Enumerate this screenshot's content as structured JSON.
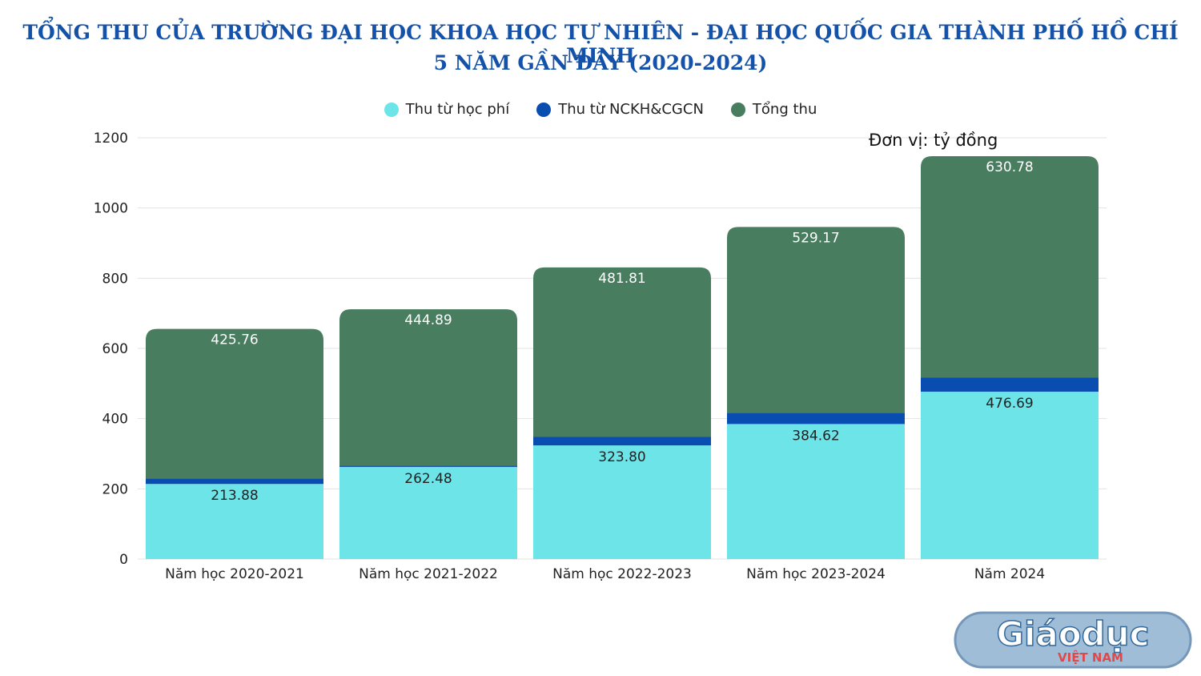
{
  "chart_data": {
    "type": "bar",
    "stacked": true,
    "title": "TỔNG THU CỦA TRƯỜNG ĐẠI HỌC KHOA HỌC TỰ NHIÊN - ĐẠI HỌC QUỐC GIA THÀNH PHỐ HỒ CHÍ MINH",
    "subtitle": "5 NĂM GẦN ĐÂY (2020-2024)",
    "unit_note": "Đơn vị: tỷ đồng",
    "categories": [
      "Năm học 2020-2021",
      "Năm học 2021-2022",
      "Năm học 2022-2023",
      "Năm học 2023-2024",
      "Năm 2024"
    ],
    "series": [
      {
        "name": "Thu từ học phí",
        "color": "#6de4e8",
        "label_color": "#222222",
        "values": [
          213.88,
          262.48,
          323.8,
          384.62,
          476.69
        ]
      },
      {
        "name": "Thu từ NCKH&CGCN",
        "color": "#0a4db0",
        "values": [
          16,
          4,
          25,
          32,
          40
        ]
      },
      {
        "name": "Tổng thu",
        "color": "#487d5f",
        "label_color": "#ffffff",
        "values": [
          425.76,
          444.89,
          481.81,
          529.17,
          630.78
        ]
      }
    ],
    "ylim": [
      0,
      1200
    ],
    "yticks": [
      0,
      200,
      400,
      600,
      800,
      1000,
      1200
    ],
    "legend_position": "top-center",
    "grid": true
  },
  "watermark": {
    "text_main": "Giáodục",
    "text_sub": "VIỆT NAM"
  }
}
